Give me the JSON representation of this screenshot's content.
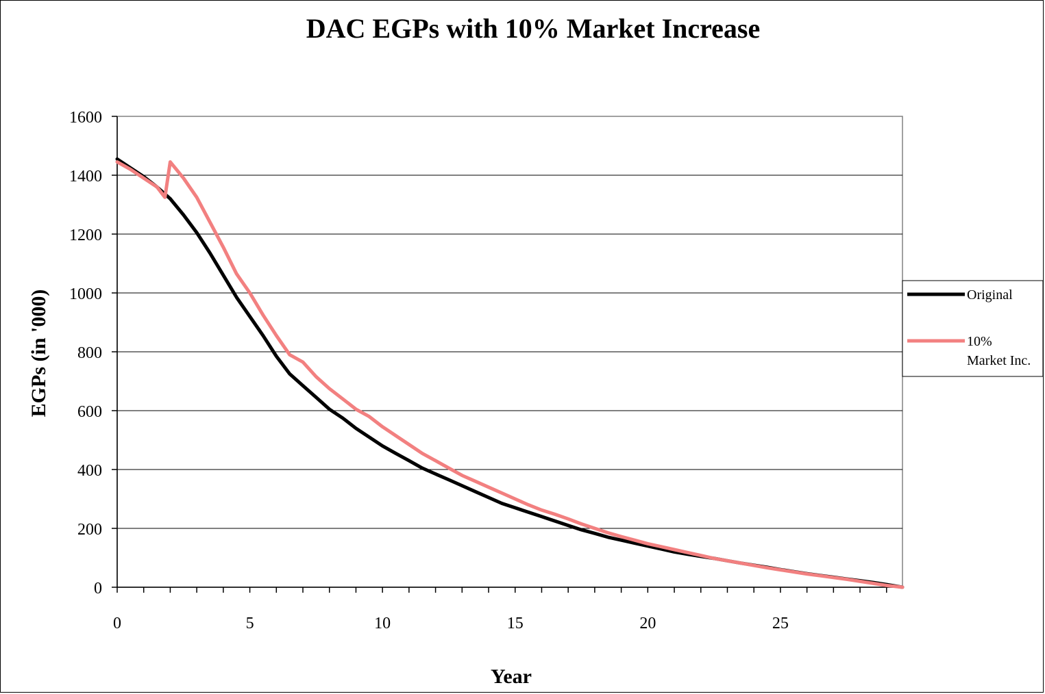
{
  "chart_data": {
    "type": "line",
    "title": "DAC EGPs with 10% Market Increase",
    "xlabel": "Year",
    "ylabel": "EGPs (in '000)",
    "xlim": [
      0,
      29.6
    ],
    "ylim": [
      0,
      1600
    ],
    "x_ticks": [
      0,
      5,
      10,
      15,
      20,
      25
    ],
    "y_ticks": [
      0,
      200,
      400,
      600,
      800,
      1000,
      1200,
      1400,
      1600
    ],
    "grid": "horizontal",
    "legend": "right",
    "series": [
      {
        "name": "Original",
        "color": "#000000",
        "x": [
          0,
          0.5,
          1,
          1.5,
          2,
          2.5,
          3,
          3.5,
          4,
          4.5,
          5,
          5.5,
          6,
          6.5,
          7,
          7.5,
          8,
          8.5,
          9,
          9.5,
          10,
          10.5,
          11,
          11.5,
          12,
          12.5,
          13,
          13.5,
          14,
          14.5,
          15,
          15.5,
          16,
          16.5,
          17,
          17.5,
          18,
          18.5,
          19,
          19.5,
          20,
          20.5,
          21,
          21.5,
          22,
          22.5,
          23,
          23.5,
          24,
          24.5,
          25,
          25.5,
          26,
          26.5,
          27,
          27.5,
          28,
          28.5,
          29,
          29.6
        ],
        "values": [
          1455,
          1425,
          1395,
          1360,
          1320,
          1265,
          1205,
          1135,
          1060,
          985,
          920,
          855,
          785,
          725,
          685,
          645,
          605,
          575,
          540,
          510,
          480,
          455,
          430,
          405,
          385,
          365,
          345,
          325,
          305,
          285,
          270,
          255,
          240,
          225,
          210,
          195,
          183,
          170,
          160,
          150,
          140,
          130,
          120,
          112,
          105,
          98,
          90,
          82,
          75,
          68,
          60,
          53,
          46,
          40,
          34,
          28,
          22,
          16,
          9,
          0
        ]
      },
      {
        "name": "10% Market Inc.",
        "color": "#f28080",
        "x": [
          0,
          0.5,
          1,
          1.5,
          1.8,
          2,
          2.5,
          3,
          3.5,
          4,
          4.5,
          5,
          5.5,
          6,
          6.5,
          7,
          7.5,
          8,
          8.5,
          9,
          9.5,
          10,
          10.5,
          11,
          11.5,
          12,
          12.5,
          13,
          13.5,
          14,
          14.5,
          15,
          15.5,
          16,
          16.5,
          17,
          17.5,
          18,
          18.5,
          19,
          19.5,
          20,
          20.5,
          21,
          21.5,
          22,
          22.5,
          23,
          23.5,
          24,
          24.5,
          25,
          25.5,
          26,
          26.5,
          27,
          27.5,
          28,
          28.5,
          29,
          29.6
        ],
        "values": [
          1445,
          1420,
          1390,
          1360,
          1325,
          1445,
          1390,
          1325,
          1240,
          1155,
          1065,
          1000,
          925,
          855,
          790,
          765,
          715,
          675,
          640,
          605,
          580,
          545,
          515,
          485,
          455,
          430,
          405,
          380,
          360,
          340,
          320,
          300,
          280,
          262,
          248,
          232,
          215,
          200,
          185,
          172,
          160,
          148,
          138,
          128,
          118,
          108,
          98,
          90,
          82,
          74,
          66,
          59,
          52,
          45,
          39,
          33,
          27,
          20,
          13,
          6,
          0
        ]
      }
    ]
  }
}
